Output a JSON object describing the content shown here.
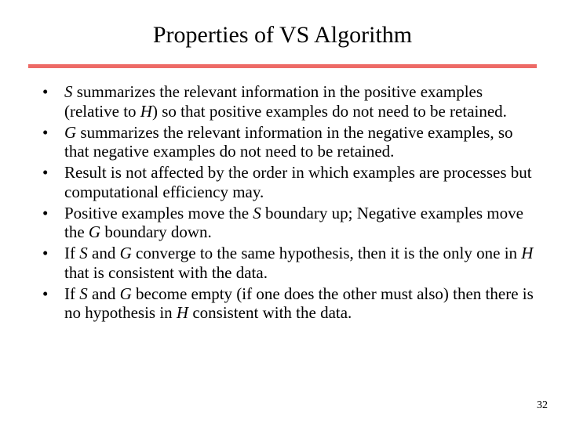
{
  "title": "Properties of VS Algorithm",
  "rule_color": "#ed6a66",
  "title_color": "#000000",
  "body_color": "#000000",
  "bullets": [
    {
      "pre": "",
      "em1": "S",
      "mid1": " summarizes the relevant information in the positive examples (relative to ",
      "em2": "H",
      "mid2": ") so that positive examples do not need to be retained.",
      "em3": "",
      "tail": ""
    },
    {
      "pre": "",
      "em1": "G",
      "mid1": " summarizes the relevant information in the negative examples, so that negative examples do not need to be retained.",
      "em2": "",
      "mid2": "",
      "em3": "",
      "tail": ""
    },
    {
      "pre": "Result is not affected by the order in which examples are processes but computational efficiency may.",
      "em1": "",
      "mid1": "",
      "em2": "",
      "mid2": "",
      "em3": "",
      "tail": ""
    },
    {
      "pre": "Positive examples move the ",
      "em1": "S",
      "mid1": " boundary up; Negative examples move the ",
      "em2": "G",
      "mid2": " boundary down.",
      "em3": "",
      "tail": ""
    },
    {
      "pre": "If ",
      "em1": "S",
      "mid1": " and ",
      "em2": "G",
      "mid2": " converge to the same hypothesis, then it is the only one in ",
      "em3": "H",
      "tail": " that is consistent with the data."
    },
    {
      "pre": "If ",
      "em1": "S",
      "mid1": " and ",
      "em2": "G",
      "mid2": " become empty (if one does the other must also) then there is no hypothesis in ",
      "em3": "H",
      "tail": " consistent with the data."
    }
  ],
  "page_number": "32",
  "title_fontsize": 30,
  "body_fontsize": 21
}
